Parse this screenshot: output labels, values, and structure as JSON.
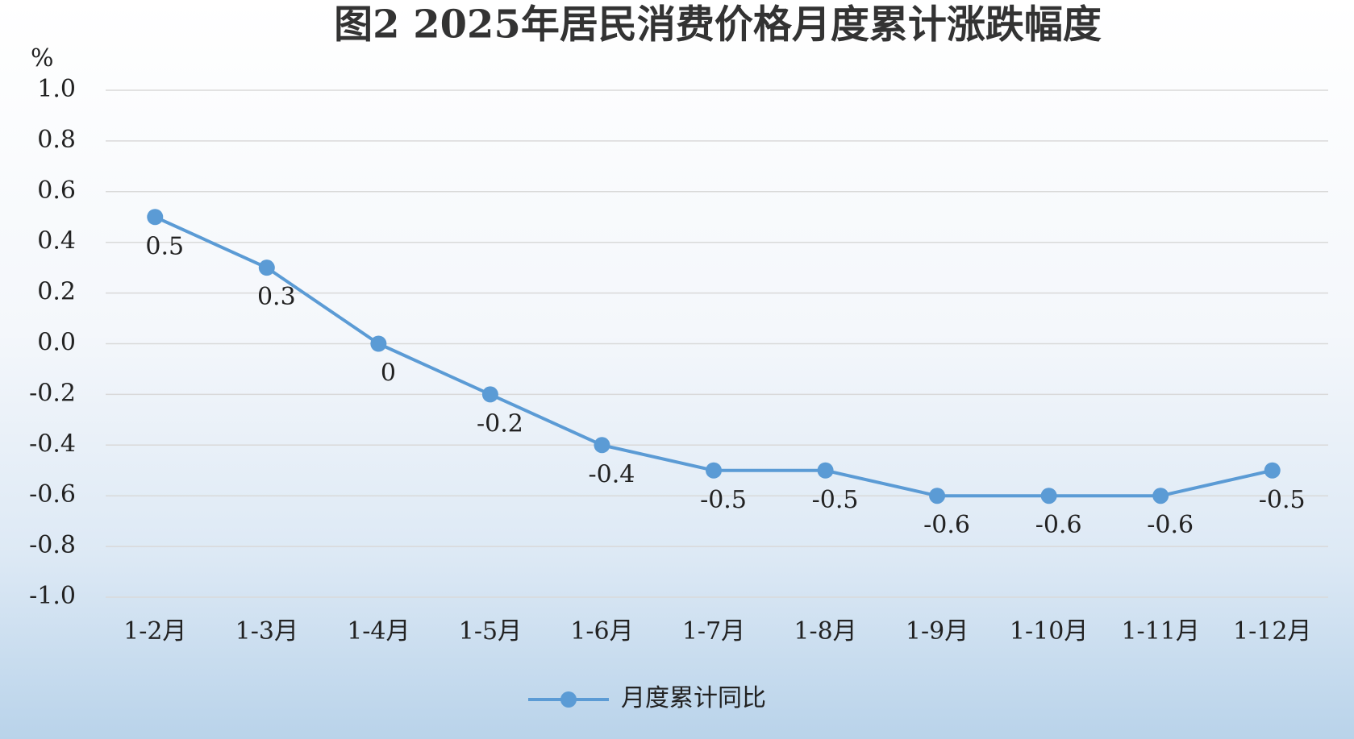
{
  "chart_data": {
    "type": "line",
    "title": "图2 2025年居民消费价格月度累计涨跌幅度",
    "y_label": "%",
    "categories": [
      "1-2月",
      "1-3月",
      "1-4月",
      "1-5月",
      "1-6月",
      "1-7月",
      "1-8月",
      "1-9月",
      "1-10月",
      "1-11月",
      "1-12月"
    ],
    "series": [
      {
        "name": "月度累计同比",
        "color": "#5b9bd5",
        "values": [
          0.5,
          0.3,
          0,
          -0.2,
          -0.4,
          -0.5,
          -0.5,
          -0.6,
          -0.6,
          -0.6,
          -0.5
        ]
      }
    ],
    "ylim": [
      -1.0,
      1.0
    ],
    "yticks": [
      {
        "value": -1.0,
        "label": "-1.0"
      },
      -0.8,
      -0.6,
      -0.4,
      -0.2,
      {
        "value": 0,
        "label": "0.0"
      },
      0.2,
      0.4,
      0.6,
      0.8,
      {
        "value": 1.0,
        "label": "1.0"
      }
    ],
    "grid": true,
    "legend": "bottom",
    "data_labels": true
  }
}
